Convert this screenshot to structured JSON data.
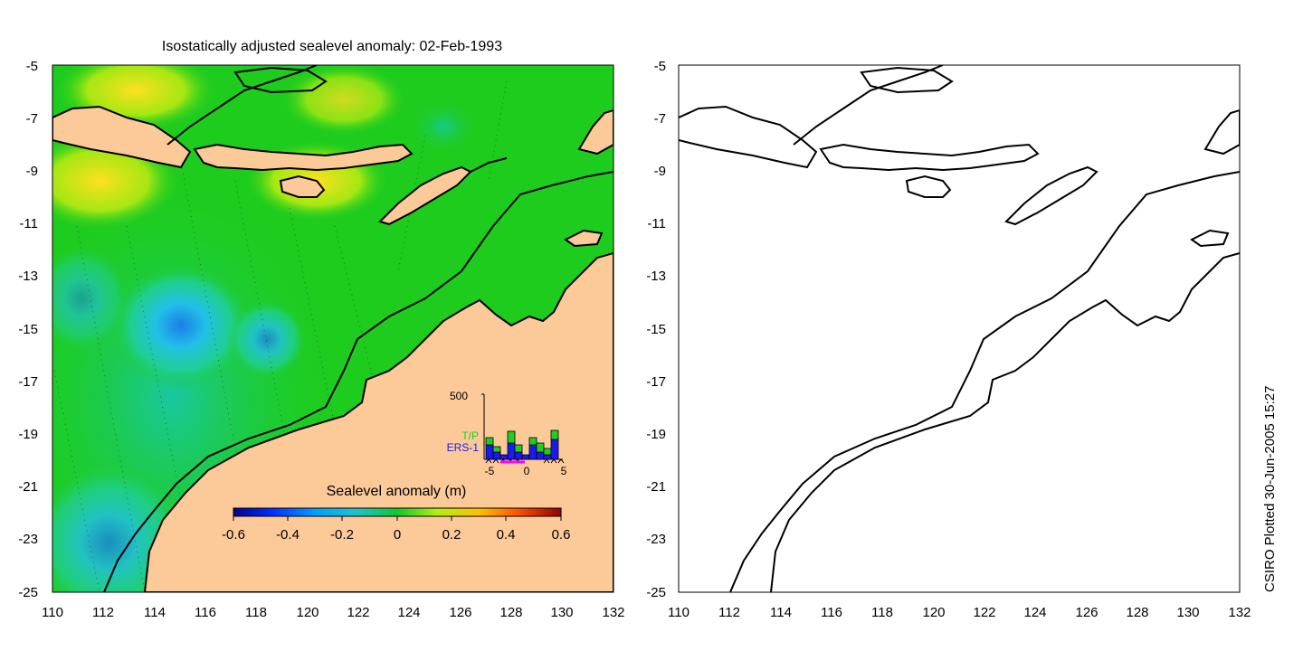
{
  "title": "Isostatically adjusted sealevel anomaly: 02-Feb-1993",
  "credit": "CSIRO Plotted 30-Jun-2005 15:27",
  "colorbar": {
    "label": "Sealevel anomaly (m)",
    "ticks": [
      "-0.6",
      "-0.4",
      "-0.2",
      "0",
      "0.2",
      "0.4",
      "0.6"
    ],
    "range": [
      -0.6,
      0.6
    ]
  },
  "inset": {
    "ymax_label": "500",
    "tp_label": "T/P",
    "ers_label": "ERS-1",
    "x_ticks": [
      "-5",
      "0",
      "5"
    ],
    "colors": {
      "tp": "#22cc22",
      "ers": "#1a1aee",
      "marker": "#ff00ff"
    }
  },
  "axes": {
    "lat_ticks": [
      "-5",
      "-7",
      "-9",
      "-11",
      "-13",
      "-15",
      "-17",
      "-19",
      "-21",
      "-23",
      "-25"
    ],
    "lon_ticks": [
      "110",
      "112",
      "114",
      "116",
      "118",
      "120",
      "122",
      "124",
      "126",
      "128",
      "130",
      "132"
    ],
    "lon_range": [
      110,
      132
    ],
    "lat_range": [
      -25,
      -5
    ]
  },
  "colors": {
    "land": "#fcc999",
    "ocean_base": "#1ecc1e"
  }
}
